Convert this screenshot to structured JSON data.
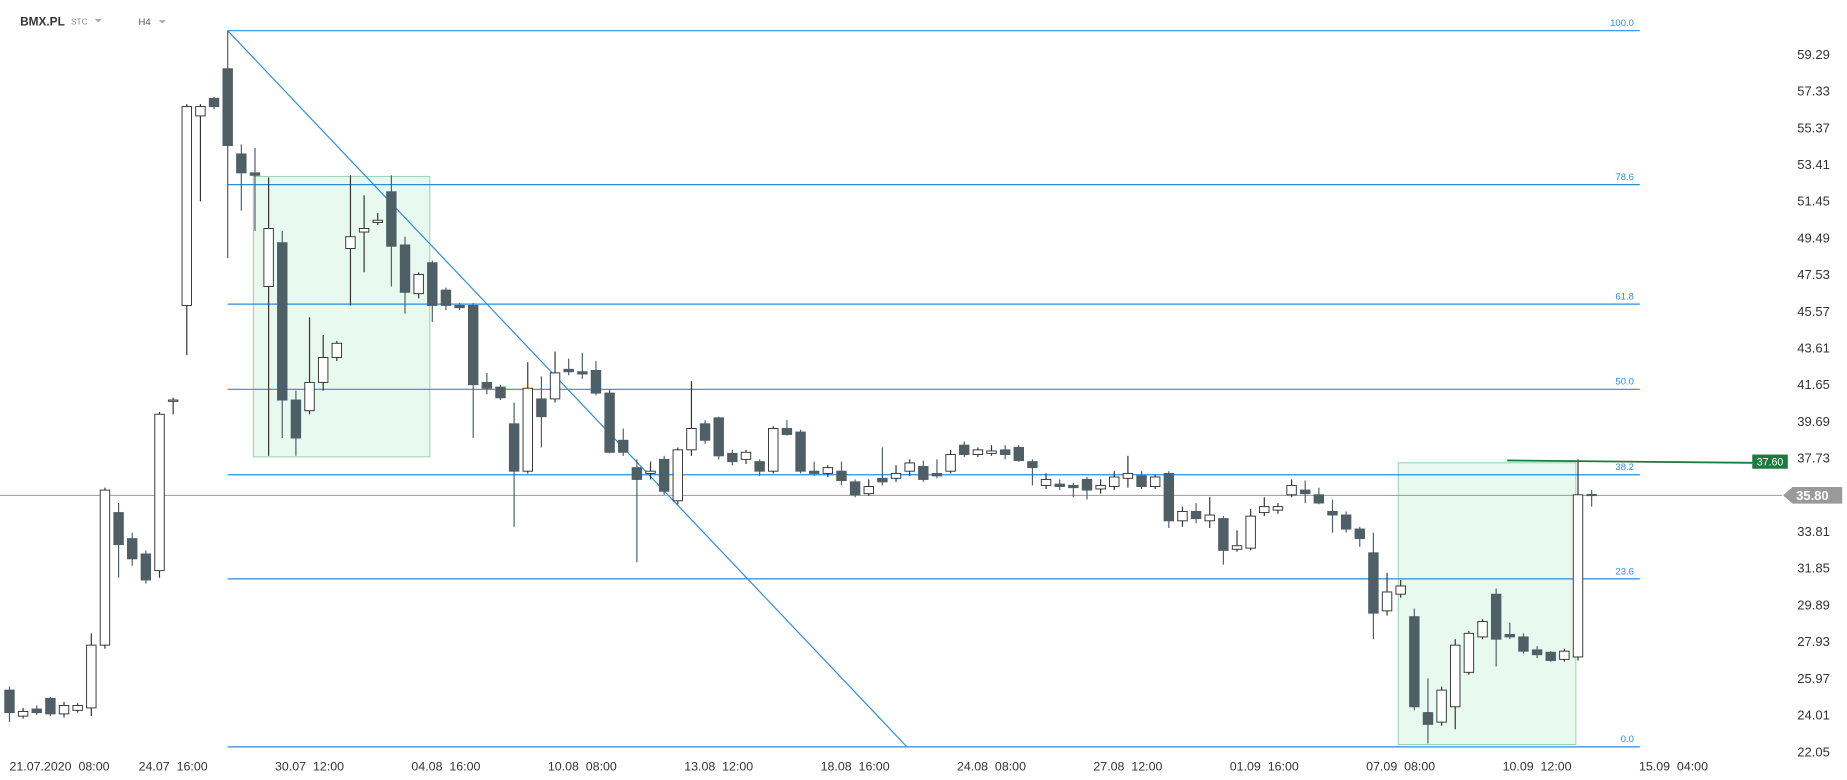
{
  "chart_data": {
    "type": "candlestick",
    "symbol": "BMX.PL",
    "market": "STC",
    "interval": "H4",
    "categories": [
      null,
      null,
      "21.07.2020  08:00",
      null,
      null,
      null,
      null,
      null,
      null,
      null,
      null,
      null,
      "24.07  16:00",
      null,
      null,
      null,
      null,
      null,
      null,
      null,
      null,
      null,
      "30.07  12:00",
      null,
      null,
      null,
      null,
      null,
      null,
      null,
      null,
      null,
      "04.08  16:00",
      null,
      null,
      null,
      null,
      null,
      null,
      null,
      null,
      null,
      "10.08  08:00",
      null,
      null,
      null,
      null,
      null,
      null,
      null,
      null,
      null,
      "13.08  12:00",
      null,
      null,
      null,
      null,
      null,
      null,
      null,
      null,
      null,
      "18.08  16:00",
      null,
      null,
      null,
      null,
      null,
      null,
      null,
      null,
      null,
      "24.08  08:00",
      null,
      null,
      null,
      null,
      null,
      null,
      null,
      null,
      null,
      "27.08  12:00",
      null,
      null,
      null,
      null,
      null,
      null,
      null,
      null,
      null,
      "01.09  16:00",
      null,
      null,
      null,
      null,
      null,
      null,
      null,
      null,
      null,
      "07.09  08:00",
      null,
      null,
      null,
      null,
      null,
      null,
      null,
      null,
      null,
      "10.09  12:00",
      null,
      null,
      null,
      null,
      null,
      null,
      null,
      null,
      null,
      "15.09  04:00"
    ],
    "open": [
      25.4,
      24.01,
      24.39,
      24.96,
      24.13,
      24.32,
      24.45,
      27.8,
      34.88,
      33.49,
      32.67,
      31.78,
      40.82,
      45.94,
      56.06,
      57.0,
      58.58,
      54.03,
      53.02,
      46.95,
      49.29,
      40.89,
      40.32,
      41.83,
      43.16,
      48.98,
      49.86,
      50.37,
      52.01,
      49.17,
      46.57,
      48.22,
      46.76,
      45.94,
      45.94,
      41.83,
      41.58,
      39.62,
      37.09,
      40.95,
      40.95,
      42.53,
      42.4,
      42.47,
      41.26,
      38.74,
      37.28,
      36.97,
      37.72,
      35.51,
      38.23,
      39.62,
      39.94,
      38.04,
      37.72,
      37.6,
      37.09,
      39.37,
      39.18,
      37.09,
      36.97,
      37.09,
      36.52,
      35.89,
      36.71,
      36.71,
      37.09,
      37.34,
      36.97,
      37.09,
      38.48,
      37.98,
      38.04,
      38.23,
      38.36,
      37.6,
      36.33,
      36.4,
      36.33,
      36.65,
      36.14,
      36.27,
      36.71,
      36.84,
      36.27,
      36.97,
      34.44,
      34.94,
      34.44,
      34.56,
      32.92,
      32.98,
      34.88,
      35.01,
      35.83,
      36.08,
      35.83,
      34.94,
      34.75,
      34.0,
      32.73,
      29.63,
      30.52,
      29.32,
      24.2,
      23.69,
      24.51,
      26.35,
      28.24,
      30.52,
      28.37,
      28.24,
      27.55,
      27.42,
      27.04,
      27.17,
      35.85,
      null,
      null,
      null,
      null,
      null,
      null
    ],
    "high": [
      25.59,
      24.45,
      24.58,
      25.02,
      24.77,
      24.7,
      28.43,
      36.21,
      35.39,
      33.81,
      32.86,
      40.25,
      41.01,
      56.69,
      56.69,
      57.07,
      60.61,
      54.54,
      54.35,
      52.77,
      49.92,
      41.39,
      45.31,
      44.36,
      44.05,
      52.89,
      51.82,
      50.87,
      52.89,
      49.61,
      47.71,
      48.34,
      46.89,
      46.07,
      46.07,
      42.34,
      41.71,
      40.76,
      42.91,
      42.15,
      43.48,
      43.1,
      43.41,
      42.97,
      41.45,
      39.37,
      37.72,
      37.6,
      37.91,
      38.36,
      41.9,
      39.81,
      40.0,
      38.23,
      38.23,
      37.72,
      39.49,
      39.81,
      39.3,
      37.6,
      37.41,
      37.6,
      36.65,
      36.65,
      38.36,
      37.41,
      37.72,
      37.66,
      37.72,
      38.23,
      38.67,
      38.36,
      38.48,
      38.48,
      38.48,
      37.72,
      36.97,
      36.65,
      36.46,
      36.78,
      36.65,
      37.09,
      37.91,
      37.09,
      36.9,
      37.09,
      35.2,
      35.39,
      35.7,
      34.69,
      33.93,
      35.07,
      35.7,
      35.39,
      36.65,
      36.59,
      36.21,
      35.58,
      34.94,
      34.12,
      33.81,
      31.66,
      31.28,
      29.76,
      26.03,
      25.59,
      28.12,
      28.56,
      29.19,
      30.83,
      29.0,
      28.43,
      27.74,
      27.48,
      27.61,
      37.72,
      36.08,
      null,
      null,
      null,
      null,
      null,
      null
    ],
    "low": [
      23.69,
      23.88,
      24.07,
      24.01,
      23.94,
      24.2,
      24.01,
      27.61,
      31.4,
      32.04,
      31.09,
      31.4,
      40.13,
      43.29,
      51.5,
      56.43,
      48.47,
      51.0,
      49.92,
      37.91,
      38.86,
      37.91,
      40.13,
      41.39,
      42.97,
      45.94,
      47.71,
      50.24,
      46.95,
      45.5,
      46.32,
      45.06,
      45.69,
      45.69,
      38.86,
      41.2,
      40.89,
      34.12,
      36.97,
      38.36,
      40.76,
      42.21,
      42.02,
      41.14,
      38.04,
      37.91,
      32.23,
      36.65,
      35.83,
      35.32,
      37.91,
      38.55,
      37.72,
      37.41,
      37.47,
      36.84,
      36.97,
      38.99,
      36.97,
      36.84,
      36.78,
      36.33,
      35.7,
      35.77,
      36.33,
      36.52,
      36.84,
      36.52,
      36.71,
      36.97,
      37.85,
      37.85,
      37.91,
      37.72,
      37.6,
      36.33,
      36.14,
      36.08,
      35.7,
      35.58,
      35.89,
      36.08,
      36.21,
      36.14,
      36.14,
      34.06,
      34.12,
      34.31,
      34.06,
      32.1,
      32.79,
      32.86,
      34.69,
      34.82,
      35.7,
      35.39,
      35.32,
      33.81,
      33.81,
      33.05,
      28.12,
      29.38,
      30.33,
      24.32,
      22.55,
      23.5,
      23.31,
      26.22,
      28.12,
      26.66,
      28.12,
      27.36,
      27.11,
      26.92,
      26.92,
      26.98,
      35.2,
      null,
      null,
      null,
      null,
      null,
      null
    ],
    "close": [
      24.2,
      24.26,
      24.2,
      24.13,
      24.58,
      24.58,
      27.8,
      36.08,
      33.17,
      32.41,
      31.28,
      40.13,
      40.89,
      56.56,
      56.56,
      56.56,
      54.48,
      53.02,
      52.89,
      50.05,
      40.89,
      38.86,
      41.83,
      43.16,
      43.92,
      49.61,
      50.05,
      50.49,
      49.1,
      46.64,
      47.59,
      45.94,
      45.94,
      45.82,
      41.71,
      41.52,
      41.01,
      37.09,
      41.52,
      40.0,
      42.34,
      42.4,
      42.28,
      41.26,
      38.1,
      38.1,
      36.65,
      37.09,
      36.02,
      38.23,
      39.37,
      38.74,
      37.91,
      37.6,
      38.1,
      37.09,
      39.37,
      39.05,
      37.09,
      36.97,
      37.28,
      36.59,
      35.83,
      36.27,
      36.52,
      36.97,
      37.53,
      36.65,
      36.84,
      37.98,
      37.98,
      38.23,
      38.17,
      37.98,
      37.66,
      37.28,
      36.65,
      36.27,
      36.21,
      36.08,
      36.33,
      36.78,
      36.97,
      36.27,
      36.78,
      34.44,
      34.94,
      34.56,
      34.75,
      32.86,
      33.11,
      34.69,
      35.2,
      35.2,
      36.33,
      35.89,
      35.39,
      34.75,
      34.0,
      33.49,
      29.51,
      30.64,
      30.96,
      24.51,
      23.57,
      25.4,
      27.8,
      28.43,
      29.06,
      28.12,
      28.24,
      27.48,
      27.29,
      26.98,
      27.48,
      35.83,
      35.8,
      null,
      null,
      null,
      null,
      null,
      null
    ],
    "ylim": [
      20.6,
      62.25
    ],
    "yticks": [
      22.05,
      24.01,
      25.97,
      27.93,
      29.89,
      31.85,
      33.81,
      37.73,
      39.69,
      41.65,
      43.61,
      45.57,
      47.53,
      49.49,
      51.45,
      53.41,
      55.37,
      57.33,
      59.29
    ],
    "fib_levels": [
      {
        "label": "100.0",
        "price": 60.61
      },
      {
        "label": "78.6",
        "price": 52.39
      },
      {
        "label": "61.8",
        "price": 46.01
      },
      {
        "label": "50.0",
        "price": 41.46
      },
      {
        "label": "38.2",
        "price": 36.9
      },
      {
        "label": "23.6",
        "price": 31.34
      },
      {
        "label": "0.0",
        "price": 22.37
      }
    ],
    "last_price": {
      "value": 35.8,
      "label": "35.80"
    },
    "alert_price": {
      "value": 37.6,
      "label": "37.60"
    },
    "up_color": "#ffffff",
    "down_color": "#4f5f66",
    "fib_color": "#2a8be0",
    "alert_color": "#1b7a3e"
  }
}
